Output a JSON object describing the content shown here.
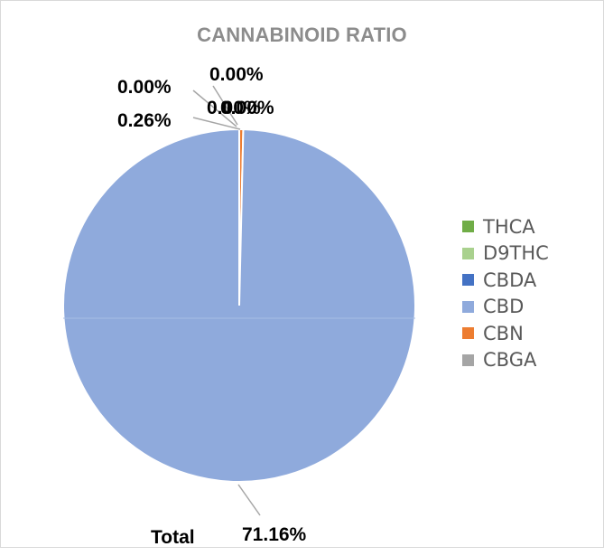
{
  "chart_data": {
    "type": "pie",
    "title": "CANNABINOID RATIO",
    "categories": [
      "THCA",
      "D9THC",
      "CBDA",
      "CBD",
      "CBN",
      "CBGA"
    ],
    "values": [
      0.0,
      0.0,
      0.0,
      71.16,
      0.26,
      0.0
    ],
    "data_labels": [
      "0.00%",
      "0.00%",
      "0.00%",
      "71.16%",
      "0.26%",
      "0.00%"
    ],
    "colors": [
      "#70ad47",
      "#a9d18e",
      "#4472c4",
      "#8faadc",
      "#ed7d31",
      "#a5a5a5"
    ],
    "legend_position": "right",
    "footer": {
      "label": "Total",
      "value": "71.16%"
    }
  }
}
